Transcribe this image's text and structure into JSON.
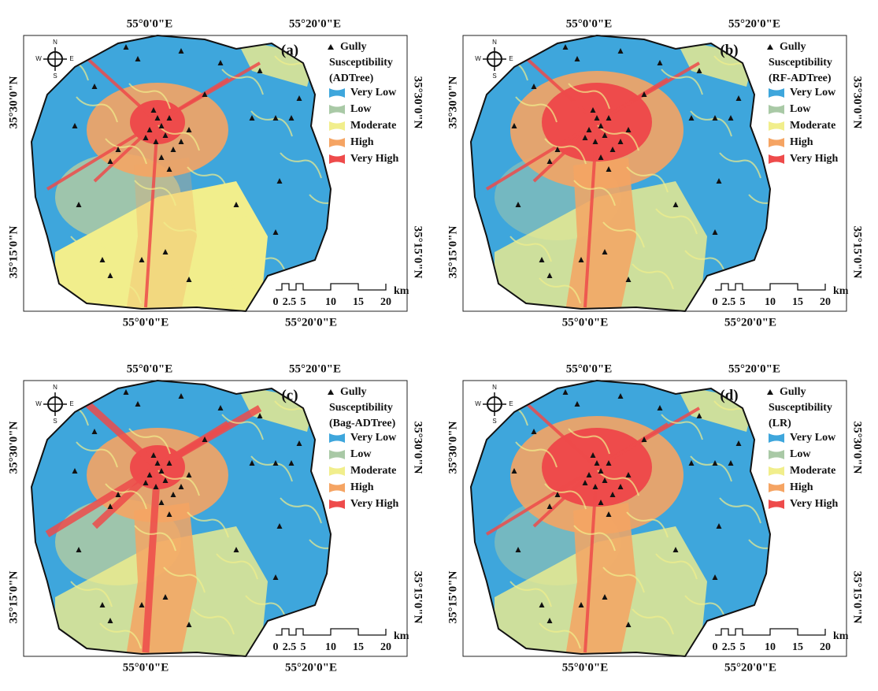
{
  "common": {
    "x_labels": [
      "55°0'0\"E",
      "55°20'0\"E"
    ],
    "y_labels": [
      "35°30'0\"N",
      "35°15'0\"N"
    ],
    "legend_title": [
      "Gully",
      "Susceptibility"
    ],
    "classes": [
      {
        "name": "Very Low",
        "color": "#3ea6dc"
      },
      {
        "name": "Low",
        "color": "#a9c9a6"
      },
      {
        "name": "Moderate",
        "color": "#f1ee8c"
      },
      {
        "name": "High",
        "color": "#f5a463"
      },
      {
        "name": "Very High",
        "color": "#ee4b4b"
      }
    ],
    "scale": [
      "0",
      "2.5",
      "5",
      "10",
      "15",
      "20"
    ],
    "scale_unit": "km",
    "compass": [
      "N",
      "S",
      "E",
      "W"
    ]
  },
  "panels": [
    {
      "label": "(a)",
      "model": "(ADTree)"
    },
    {
      "label": "(b)",
      "model": "(RF-ADTree)"
    },
    {
      "label": "(c)",
      "model": "(Bag-ADTree)"
    },
    {
      "label": "(d)",
      "model": "(LR)"
    }
  ]
}
